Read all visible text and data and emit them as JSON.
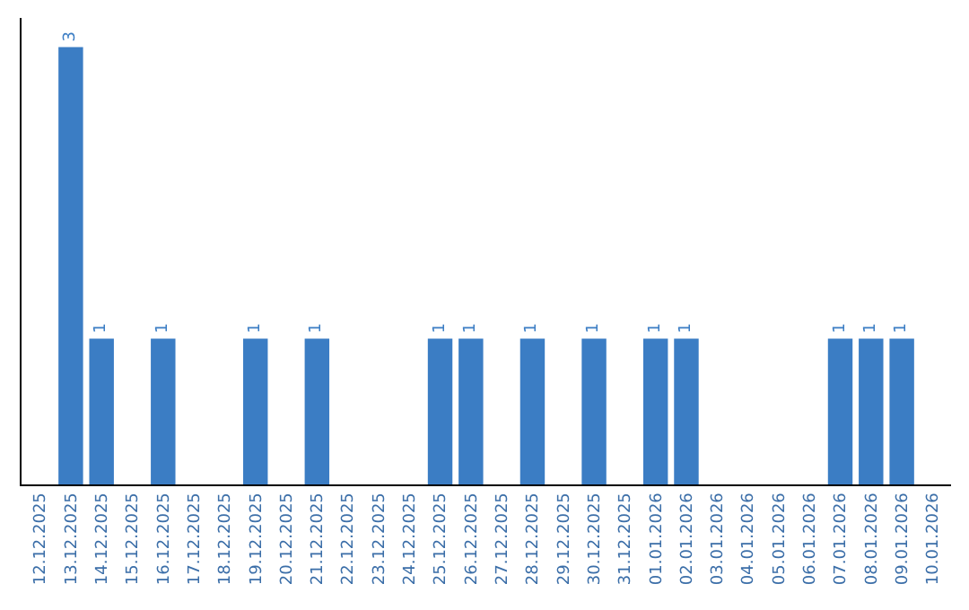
{
  "chart_data": {
    "type": "bar",
    "categories": [
      "12.12.2025",
      "13.12.2025",
      "14.12.2025",
      "15.12.2025",
      "16.12.2025",
      "17.12.2025",
      "18.12.2025",
      "19.12.2025",
      "20.12.2025",
      "21.12.2025",
      "22.12.2025",
      "23.12.2025",
      "24.12.2025",
      "25.12.2025",
      "26.12.2025",
      "27.12.2025",
      "28.12.2025",
      "29.12.2025",
      "30.12.2025",
      "31.12.2025",
      "01.01.2026",
      "02.01.2026",
      "03.01.2026",
      "04.01.2026",
      "05.01.2026",
      "06.01.2026",
      "07.01.2026",
      "08.01.2026",
      "09.01.2026",
      "10.01.2026"
    ],
    "values": [
      0,
      3,
      1,
      0,
      1,
      0,
      0,
      1,
      0,
      1,
      0,
      0,
      0,
      1,
      1,
      0,
      1,
      0,
      1,
      0,
      1,
      1,
      0,
      0,
      0,
      0,
      1,
      1,
      1,
      0
    ],
    "value_labels": [
      null,
      "3",
      "1",
      null,
      "1",
      null,
      null,
      "1",
      null,
      "1",
      null,
      null,
      null,
      "1",
      "1",
      null,
      "1",
      null,
      "1",
      null,
      "1",
      "1",
      null,
      null,
      null,
      null,
      "1",
      "1",
      "1",
      null
    ],
    "color": "#3b7dc4",
    "ylim": [
      0,
      3.2
    ],
    "tick_labels": "x"
  }
}
